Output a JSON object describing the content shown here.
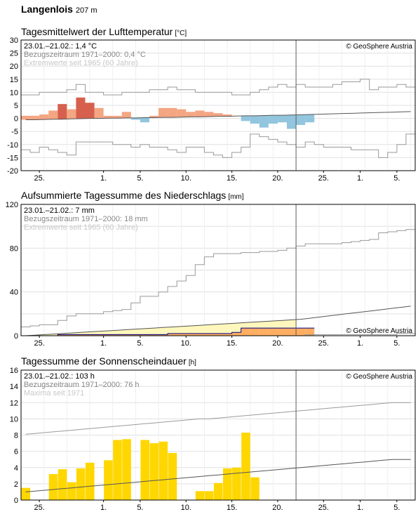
{
  "header": {
    "station": "Langenlois",
    "altitude": "207 m"
  },
  "panels": [
    {
      "title": "Tagesmittelwert der Lufttemperatur",
      "unit": "[°C]",
      "legend": [
        "23.01.–21.02.: 1,4 °C",
        "Bezugszeitraum 1971–2000: 0,4 °C",
        "Extremwerte seit 1965 (60 Jahre)"
      ],
      "copyright": "© GeoSphere Austria",
      "yticks": [
        "30",
        "25",
        "20",
        "15",
        "10",
        "5",
        "0",
        "-5",
        "-10",
        "-15",
        "-20"
      ]
    },
    {
      "title": "Aufsummierte Tagessumme des Niederschlags",
      "unit": "[mm]",
      "legend": [
        "23.01.–21.02.: 7 mm",
        "Bezugszeitraum 1971–2000: 18 mm",
        "Extremwerte seit 1965 (60 Jahre)"
      ],
      "copyright": "© GeoSphere Austria",
      "yticks": [
        "120",
        "80",
        "40",
        "0"
      ]
    },
    {
      "title": "Tagessumme der Sonnenscheindauer",
      "unit": "[h]",
      "legend": [
        "23.01.–21.02.: 103 h",
        "Bezugszeitraum 1971–2000: 76 h",
        "Maxima seit 1971"
      ],
      "copyright": "© GeoSphere Austria",
      "yticks": [
        "16",
        "14",
        "12",
        "10",
        "8",
        "6",
        "4",
        "2",
        "0"
      ]
    }
  ],
  "xtick_labels": [
    "25.",
    "1.",
    "5.",
    "10.",
    "15.",
    "20.",
    "25.",
    "1.",
    "5."
  ],
  "colors": {
    "warm": "#f4a582",
    "very_warm": "#d6604d",
    "cold": "#92c5de",
    "precip_fill": "#fff7bc",
    "precip_orange": "#fdae61",
    "precip_blue": "#0000ff",
    "sun": "#ffd700",
    "grid": "#e0e0e0",
    "today_line": "#606060"
  },
  "chart_data": [
    {
      "type": "bar",
      "title": "Tagesmittelwert der Lufttemperatur",
      "ylabel": "[°C]",
      "ylim": [
        -20,
        30
      ],
      "x_start": "23.01.",
      "observed_until": "21.02.",
      "days_total": 43,
      "series": [
        {
          "name": "23.01.–21.02.",
          "values": [
            1,
            1,
            1.5,
            3,
            5.5,
            3.5,
            8,
            6,
            4,
            1,
            1,
            2.5,
            -0.5,
            -1.5,
            1,
            4,
            4,
            3.5,
            2.5,
            3,
            2.5,
            2,
            1.5,
            1,
            -1,
            -2,
            -3.5,
            -2,
            -1.5,
            -4,
            -2.5,
            -1.5
          ]
        },
        {
          "name": "Bezugszeitraum 1971–2000",
          "values": [
            -0.5,
            -0.5,
            -0.4,
            -0.3,
            -0.3,
            -0.2,
            -0.1,
            0,
            0,
            0.1,
            0.1,
            0.2,
            0.2,
            0.3,
            0.3,
            0.4,
            0.4,
            0.5,
            0.6,
            0.6,
            0.7,
            0.8,
            0.8,
            0.9,
            1,
            1,
            1.1,
            1.2,
            1.2,
            1.3,
            1.4,
            1.5,
            1.6,
            1.7,
            1.8,
            1.9,
            2,
            2.1,
            2.2,
            2.3,
            2.4,
            2.5,
            2.6
          ]
        },
        {
          "name": "max",
          "values": [
            9,
            9,
            10,
            10,
            10,
            11,
            13,
            10,
            10,
            9,
            9,
            10,
            10,
            10,
            11,
            11,
            12,
            11,
            11,
            10,
            10,
            10,
            10,
            9,
            9,
            10,
            11,
            12,
            13,
            12,
            13,
            12,
            12,
            12,
            13,
            14,
            14,
            15,
            11,
            12,
            12,
            13,
            12
          ]
        },
        {
          "name": "min",
          "values": [
            -12,
            -13,
            -11,
            -12,
            -13,
            -14,
            -9,
            -9,
            -9,
            -9,
            -10,
            -10,
            -11,
            -10,
            -11,
            -11,
            -12,
            -13,
            -11,
            -11,
            -13,
            -14,
            -15,
            -13,
            -11,
            -6,
            -7,
            -8,
            -9,
            -10,
            -11,
            -9,
            -10,
            -11,
            -11,
            -11,
            -12,
            -12,
            -12,
            -15,
            -13,
            -10,
            -6
          ]
        }
      ]
    },
    {
      "type": "area",
      "title": "Aufsummierte Tagessumme des Niederschlags",
      "ylabel": "[mm]",
      "ylim": [
        0,
        120
      ],
      "series": [
        {
          "name": "23.01.–21.02.",
          "values": [
            0,
            0,
            0,
            0,
            1,
            1,
            1,
            1,
            1,
            1,
            1,
            1,
            1,
            1,
            1,
            1,
            2,
            2,
            2,
            2,
            2,
            2,
            2,
            3,
            7,
            7,
            7,
            7,
            7,
            7,
            7,
            7
          ]
        },
        {
          "name": "Bezugszeitraum 1971–2000",
          "values": [
            0,
            0.5,
            1,
            1.5,
            2,
            2.5,
            3,
            3.5,
            4,
            4.5,
            5,
            5.5,
            6,
            6.5,
            7,
            7.5,
            8,
            8.5,
            9,
            9.5,
            10,
            10.5,
            11,
            11.5,
            12,
            12.5,
            13,
            13.5,
            14,
            14.5,
            15,
            16,
            17,
            18,
            19,
            20,
            21,
            22,
            23,
            24,
            25,
            26,
            27
          ]
        },
        {
          "name": "Extremwerte max",
          "values": [
            8,
            9,
            10,
            10,
            14,
            18,
            20,
            20,
            20,
            22,
            23,
            24,
            30,
            36,
            36,
            40,
            45,
            50,
            55,
            65,
            72,
            75,
            75,
            75,
            76,
            76,
            77,
            77,
            78,
            80,
            82,
            84,
            84,
            84,
            84,
            85,
            86,
            87,
            88,
            94,
            95,
            96,
            97
          ]
        },
        {
          "name": "Extremwerte min",
          "values": [
            0,
            0,
            0,
            0,
            0,
            0,
            0,
            0,
            0,
            0,
            0,
            0,
            0,
            0,
            0,
            0,
            0,
            0,
            0,
            0,
            0,
            0,
            0,
            0,
            0,
            0,
            0,
            0,
            0,
            0,
            0,
            1,
            1,
            1,
            1,
            1,
            1,
            1,
            1,
            1,
            1,
            2,
            2
          ]
        }
      ]
    },
    {
      "type": "bar",
      "title": "Tagessumme der Sonnenscheindauer",
      "ylabel": "[h]",
      "ylim": [
        0,
        16
      ],
      "series": [
        {
          "name": "23.01.–21.02.",
          "values": [
            1.5,
            0,
            0,
            3.2,
            3.8,
            2.2,
            3.9,
            4.6,
            0,
            4.9,
            7.4,
            7.5,
            0,
            7.4,
            7.0,
            7.2,
            5.8,
            0,
            0,
            1.1,
            1.1,
            2.1,
            3.9,
            4.0,
            8.3,
            2.8
          ]
        },
        {
          "name": "Bezugszeitraum 1971–2000",
          "values": [
            1,
            1.1,
            1.2,
            1.3,
            1.4,
            1.5,
            1.6,
            1.7,
            1.8,
            1.9,
            2,
            2.1,
            2.2,
            2.3,
            2.4,
            2.5,
            2.6,
            2.7,
            2.8,
            2.9,
            3,
            3.1,
            3.2,
            3.3,
            3.4,
            3.5,
            3.6,
            3.7,
            3.8,
            3.9,
            4,
            4.1,
            4.2,
            4.3,
            4.4,
            4.5,
            4.6,
            4.7,
            4.8,
            4.9,
            5,
            5,
            5
          ]
        },
        {
          "name": "Maxima seit 1971",
          "values": [
            8.1,
            8.2,
            8.3,
            8.4,
            8.5,
            8.6,
            8.7,
            8.8,
            8.9,
            9,
            9.1,
            9.2,
            9.3,
            9.4,
            9.5,
            9.6,
            9.7,
            9.8,
            9.9,
            10,
            10,
            10.1,
            10.2,
            10.3,
            10.4,
            10.5,
            10.6,
            10.7,
            10.8,
            10.9,
            11,
            11.1,
            11.2,
            11.3,
            11.4,
            11.5,
            11.6,
            11.7,
            11.8,
            11.9,
            12,
            12,
            12
          ]
        }
      ]
    }
  ]
}
